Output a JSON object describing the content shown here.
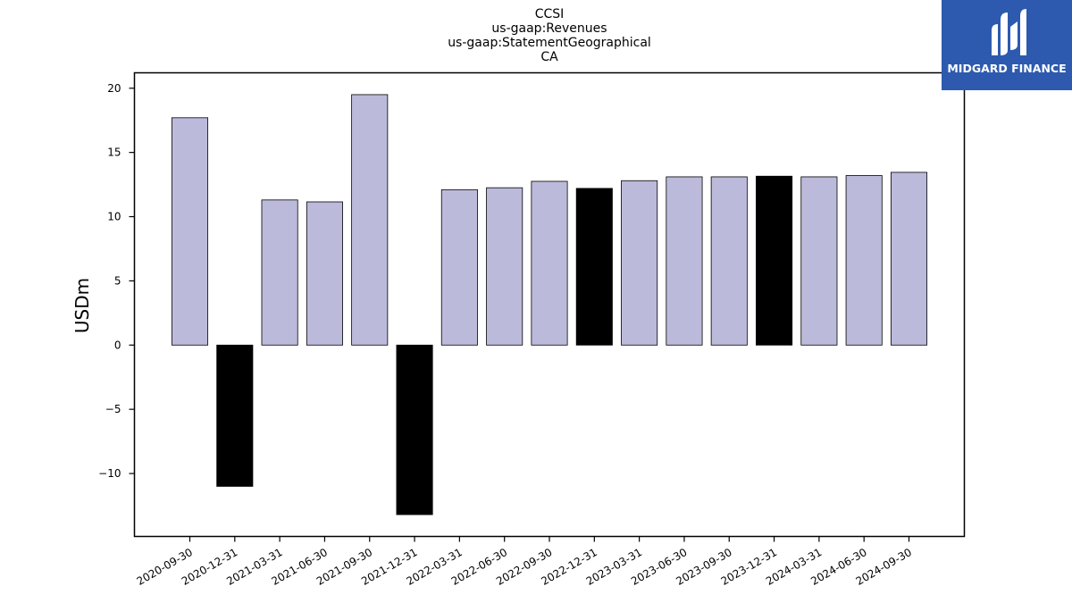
{
  "chart_data": {
    "type": "bar",
    "title_lines": [
      "CCSI",
      "us-gaap:Revenues",
      "us-gaap:StatementGeographical",
      "CA"
    ],
    "ylabel": "USDm",
    "xlabel": "",
    "ylim": [
      -14.9,
      21.2
    ],
    "yticks": [
      -10,
      -5,
      0,
      5,
      10,
      15,
      20
    ],
    "ytick_labels": [
      "−10",
      "−5",
      "0",
      "5",
      "10",
      "15",
      "20"
    ],
    "categories": [
      "2020-09-30",
      "2020-12-31",
      "2021-03-31",
      "2021-06-30",
      "2021-09-30",
      "2021-12-31",
      "2022-03-31",
      "2022-06-30",
      "2022-09-30",
      "2022-12-31",
      "2023-03-31",
      "2023-06-30",
      "2023-09-30",
      "2023-12-31",
      "2024-03-31",
      "2024-06-30",
      "2024-09-30"
    ],
    "values": [
      17.7,
      -11.0,
      11.3,
      11.15,
      19.5,
      -13.2,
      12.1,
      12.25,
      12.75,
      12.2,
      12.8,
      13.1,
      13.1,
      13.15,
      13.1,
      13.2,
      13.45
    ],
    "colors": [
      "#bcbadb",
      "#000000",
      "#bcbadb",
      "#bcbadb",
      "#bcbadb",
      "#000000",
      "#bcbadb",
      "#bcbadb",
      "#bcbadb",
      "#000000",
      "#bcbadb",
      "#bcbadb",
      "#bcbadb",
      "#000000",
      "#bcbadb",
      "#bcbadb",
      "#bcbadb"
    ],
    "grid": false,
    "legend": "none"
  },
  "logo": {
    "text": "MIDGARD FINANCE",
    "background": "#2d5aae"
  }
}
